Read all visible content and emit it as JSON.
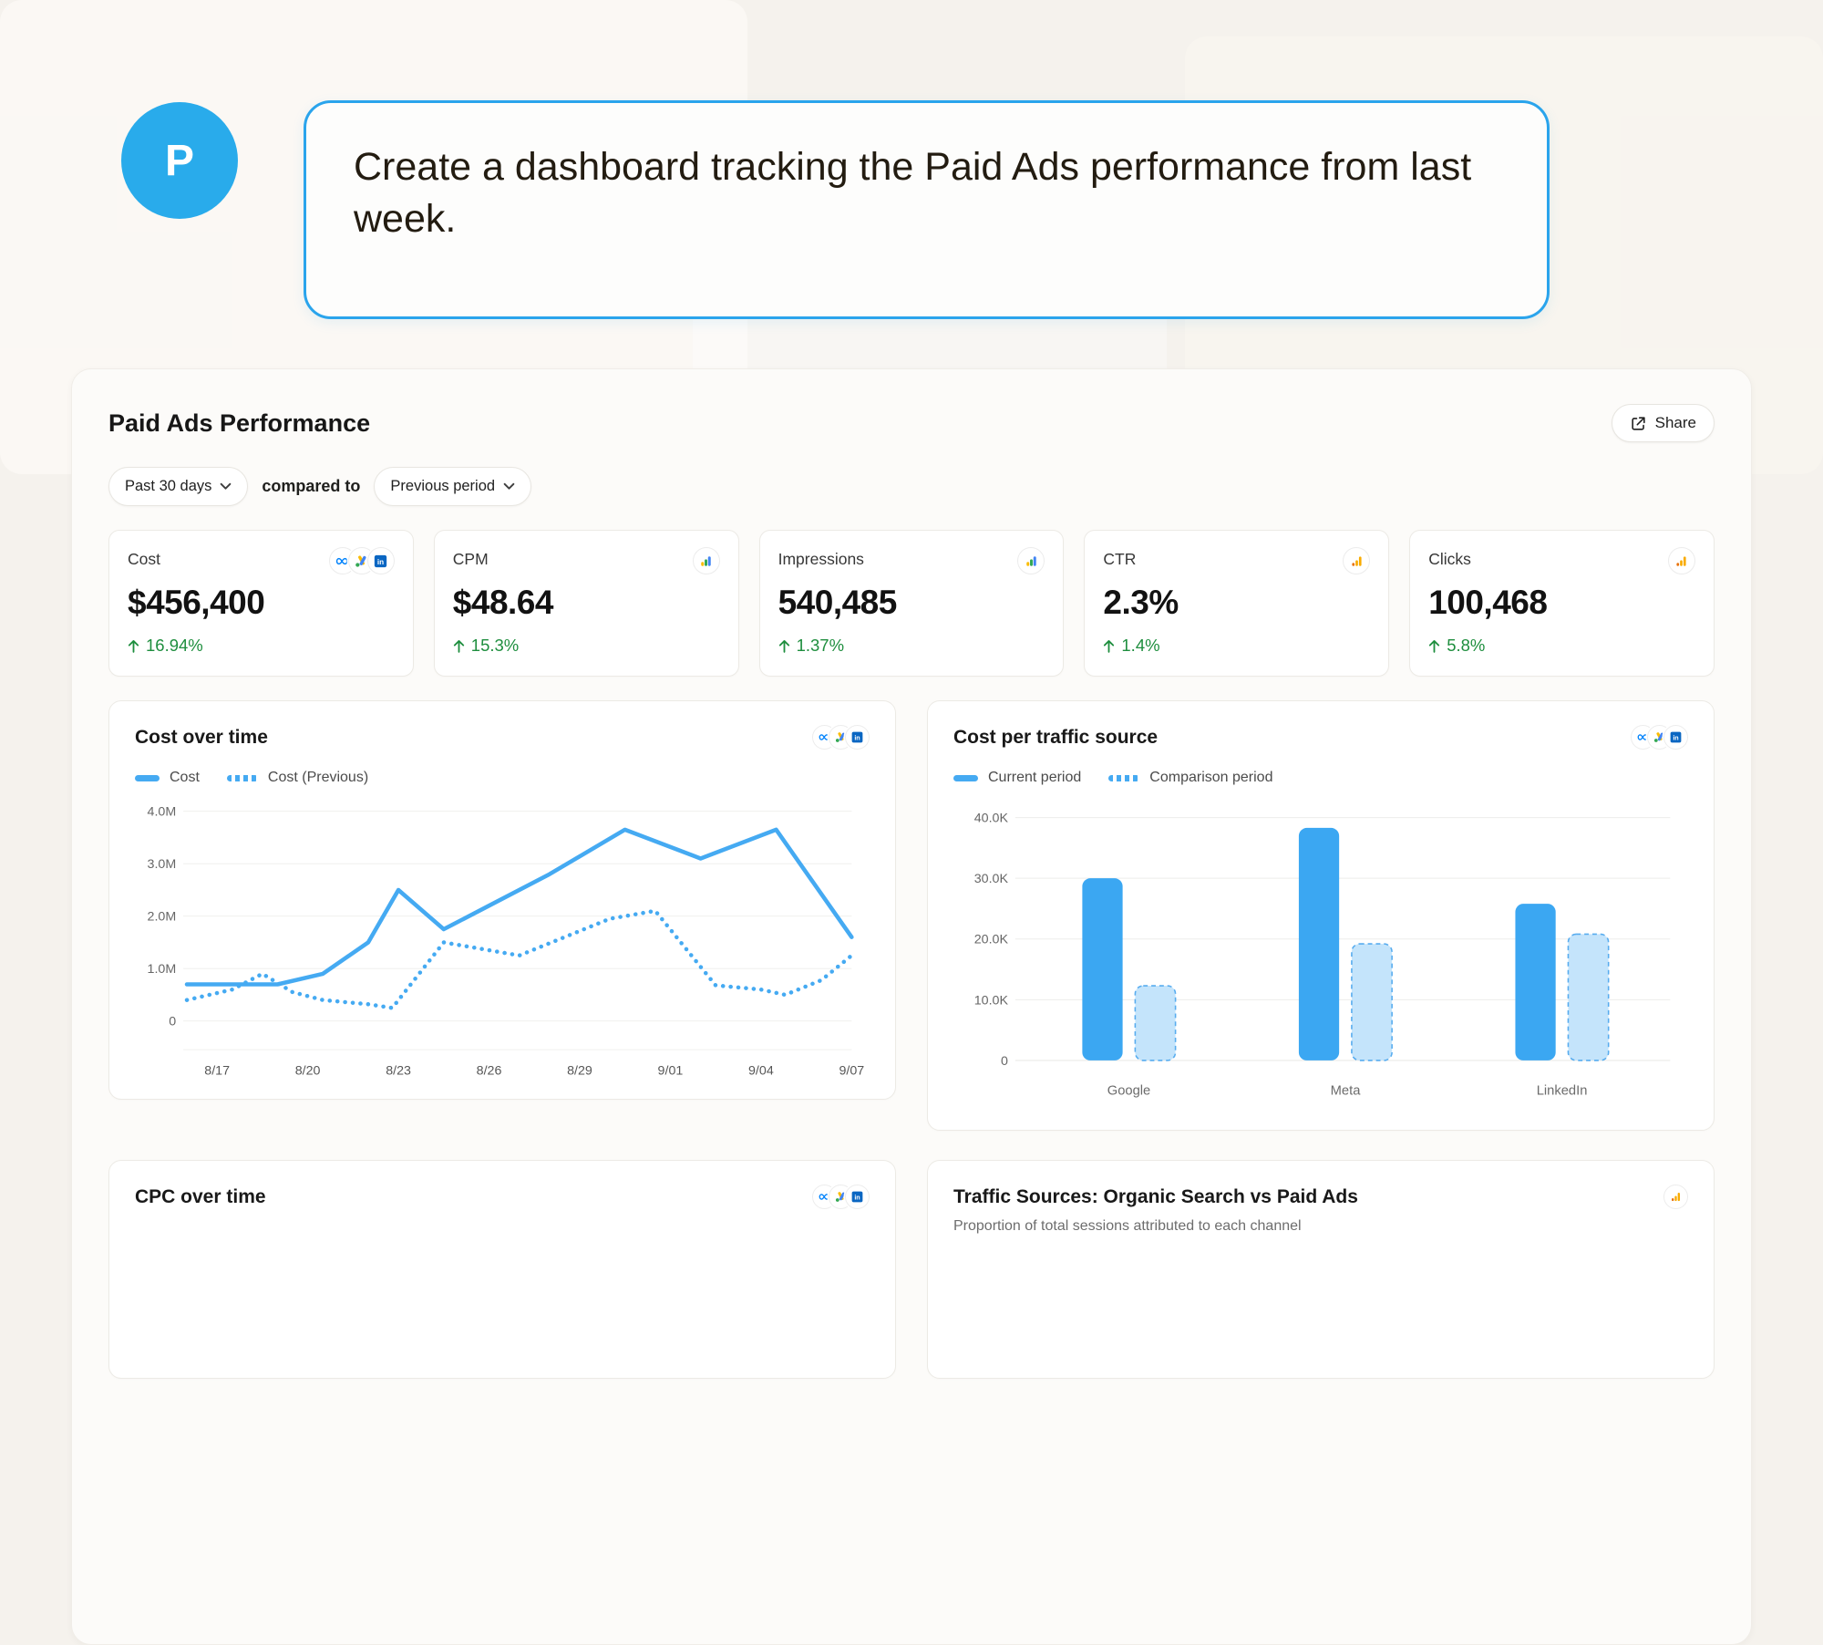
{
  "chat": {
    "avatar_initial": "P",
    "message": "Create a dashboard tracking the Paid Ads performance from last week."
  },
  "dashboard": {
    "title": "Paid Ads Performance",
    "share_label": "Share",
    "filters": {
      "date_range": "Past 30 days",
      "compared_to_label": "compared to",
      "comparison": "Previous period"
    },
    "kpis": [
      {
        "label": "Cost",
        "value": "$456,400",
        "delta": "16.94%",
        "trend": "up",
        "icons": [
          "meta",
          "google-ads",
          "linkedin"
        ]
      },
      {
        "label": "CPM",
        "value": "$48.64",
        "delta": "15.3%",
        "trend": "up",
        "icons": [
          "multicolor-bars"
        ]
      },
      {
        "label": "Impressions",
        "value": "540,485",
        "delta": "1.37%",
        "trend": "up",
        "icons": [
          "multicolor-bars"
        ]
      },
      {
        "label": "CTR",
        "value": "2.3%",
        "delta": "1.4%",
        "trend": "up",
        "icons": [
          "orange-bars"
        ]
      },
      {
        "label": "Clicks",
        "value": "100,468",
        "delta": "5.8%",
        "trend": "up",
        "icons": [
          "orange-bars"
        ]
      }
    ],
    "bottom_cards": [
      {
        "title": "CPC over time",
        "icons": [
          "meta",
          "google-ads",
          "linkedin"
        ]
      },
      {
        "title": "Traffic Sources: Organic Search vs Paid Ads",
        "subtitle": "Proportion of total sessions attributed to each channel",
        "icons": [
          "orange-bars"
        ]
      }
    ],
    "colors": {
      "accent_blue": "#2aa4ec",
      "line_blue": "#45aaf2",
      "bar_blue": "#3ba7f2",
      "bar_comparison_fill": "#c4e4fb",
      "bar_comparison_stroke": "#57acef",
      "positive_green": "#1e8e3e"
    }
  },
  "chart_data": [
    {
      "type": "line",
      "title": "Cost over time",
      "icons": [
        "meta",
        "google-ads",
        "linkedin"
      ],
      "legend": [
        "Cost",
        "Cost (Previous)"
      ],
      "unit": "M",
      "ylim": [
        0,
        4
      ],
      "yticks": [
        {
          "v": 4,
          "label": "4.0M"
        },
        {
          "v": 3,
          "label": "3.0M"
        },
        {
          "v": 2,
          "label": "2.0M"
        },
        {
          "v": 1,
          "label": "1.0M"
        },
        {
          "v": 0,
          "label": "0"
        }
      ],
      "xmax": 22,
      "xticks": [
        {
          "d": 1,
          "label": "8/17"
        },
        {
          "d": 4,
          "label": "8/20"
        },
        {
          "d": 7,
          "label": "8/23"
        },
        {
          "d": 10,
          "label": "8/26"
        },
        {
          "d": 13,
          "label": "8/29"
        },
        {
          "d": 16,
          "label": "9/01"
        },
        {
          "d": 19,
          "label": "9/04"
        },
        {
          "d": 22,
          "label": "9/07"
        }
      ],
      "series": [
        {
          "name": "Cost",
          "style": "solid",
          "points": [
            [
              0,
              0.7
            ],
            [
              3,
              0.7
            ],
            [
              4.5,
              0.9
            ],
            [
              6,
              1.5
            ],
            [
              7,
              2.5
            ],
            [
              8.5,
              1.75
            ],
            [
              10,
              2.2
            ],
            [
              12,
              2.8
            ],
            [
              14.5,
              3.65
            ],
            [
              17,
              3.1
            ],
            [
              19.5,
              3.65
            ],
            [
              22,
              1.6
            ]
          ]
        },
        {
          "name": "Cost (Previous)",
          "style": "dotted",
          "points": [
            [
              0,
              0.4
            ],
            [
              1.5,
              0.6
            ],
            [
              2.5,
              0.9
            ],
            [
              3.5,
              0.55
            ],
            [
              4.5,
              0.4
            ],
            [
              6,
              0.32
            ],
            [
              6.8,
              0.25
            ],
            [
              8.5,
              1.5
            ],
            [
              9.5,
              1.4
            ],
            [
              11,
              1.25
            ],
            [
              12.5,
              1.6
            ],
            [
              14,
              1.95
            ],
            [
              15.5,
              2.1
            ],
            [
              17.5,
              0.68
            ],
            [
              19,
              0.6
            ],
            [
              19.8,
              0.5
            ],
            [
              21,
              0.78
            ],
            [
              22,
              1.25
            ]
          ]
        }
      ],
      "grid": true,
      "legend_position": "top-left"
    },
    {
      "type": "bar",
      "title": "Cost per traffic source",
      "icons": [
        "meta",
        "google-ads",
        "linkedin"
      ],
      "legend": [
        "Current period",
        "Comparison period"
      ],
      "unit": "K",
      "ylim": [
        0,
        40000
      ],
      "yticks": [
        {
          "v": 40000,
          "label": "40.0K"
        },
        {
          "v": 30000,
          "label": "30.0K"
        },
        {
          "v": 20000,
          "label": "20.0K"
        },
        {
          "v": 10000,
          "label": "10.0K"
        },
        {
          "v": 0,
          "label": "0"
        }
      ],
      "categories": [
        "Google",
        "Meta",
        "LinkedIn"
      ],
      "series": [
        {
          "name": "Current period",
          "style": "solid",
          "values": [
            30000,
            38300,
            25800
          ]
        },
        {
          "name": "Comparison period",
          "style": "dashed",
          "values": [
            12300,
            19200,
            20800
          ]
        }
      ],
      "grid": true,
      "legend_position": "top-left"
    }
  ]
}
